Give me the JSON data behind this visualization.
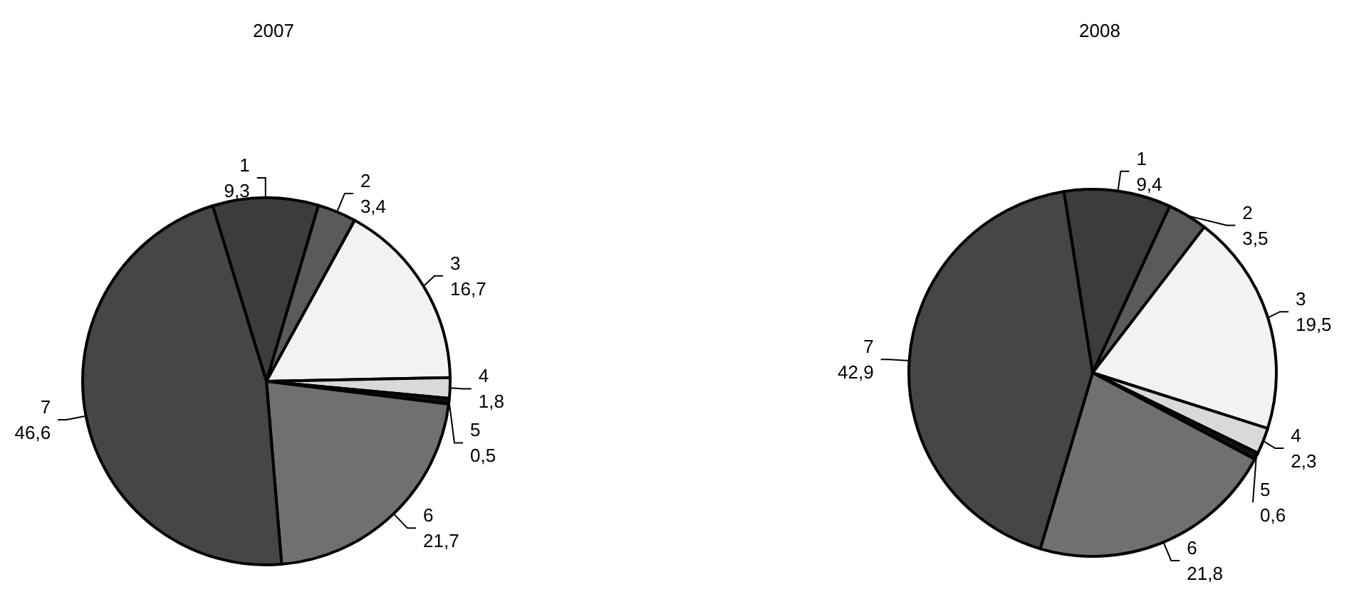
{
  "chart_data": [
    {
      "type": "pie",
      "title": "2007",
      "categories": [
        "1",
        "2",
        "3",
        "4",
        "5",
        "6",
        "7"
      ],
      "values": [
        9.3,
        3.4,
        16.7,
        1.8,
        0.5,
        21.7,
        46.6
      ],
      "value_labels": [
        "9,3",
        "3,4",
        "16,7",
        "1,8",
        "0,5",
        "21,7",
        "46,6"
      ],
      "colors": [
        "#3c3c3c",
        "#5a5a5a",
        "#f2f2f2",
        "#d9d9d9",
        "#111111",
        "#707070",
        "#464646"
      ],
      "legend": false
    },
    {
      "type": "pie",
      "title": "2008",
      "categories": [
        "1",
        "2",
        "3",
        "4",
        "5",
        "6",
        "7"
      ],
      "values": [
        9.4,
        3.5,
        19.5,
        2.3,
        0.6,
        21.8,
        42.9
      ],
      "value_labels": [
        "9,4",
        "3,5",
        "19,5",
        "2,3",
        "0,6",
        "21,8",
        "42,9"
      ],
      "colors": [
        "#3c3c3c",
        "#5a5a5a",
        "#f2f2f2",
        "#d9d9d9",
        "#111111",
        "#707070",
        "#464646"
      ],
      "legend": false
    }
  ]
}
